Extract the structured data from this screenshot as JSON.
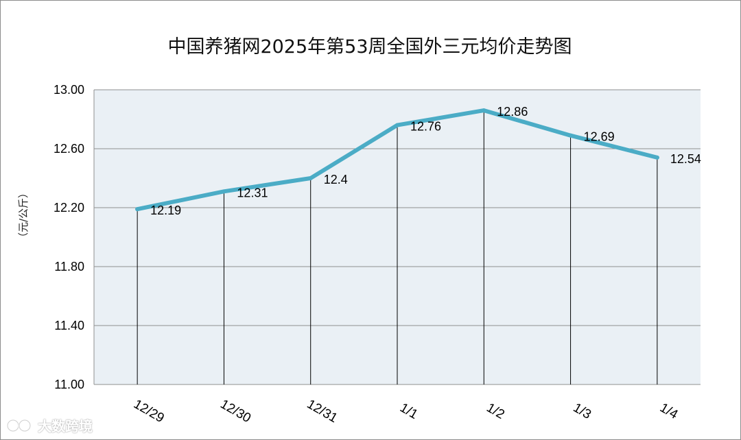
{
  "chart_data": {
    "type": "line",
    "title": "中国养猪网2025年第53周全国外三元均价走势图",
    "ylabel": "（元/公斤）",
    "categories": [
      "12/29",
      "12/30",
      "12/31",
      "1/1",
      "1/2",
      "1/3",
      "1/4"
    ],
    "values": [
      12.19,
      12.31,
      12.4,
      12.76,
      12.86,
      12.69,
      12.54
    ],
    "value_labels": [
      "12.19",
      "12.31",
      "12.4",
      "12.76",
      "12.86",
      "12.69",
      "12.54"
    ],
    "ylim": [
      11.0,
      13.0
    ],
    "yticks": [
      "11.00",
      "11.40",
      "11.80",
      "12.20",
      "12.60",
      "13.00"
    ],
    "grid": true,
    "drop_lines": true,
    "colors": {
      "line": "#4bacc6",
      "plot_background": "#eaf0f5",
      "gridline": "#8f8f8f",
      "drop_line": "#000000"
    }
  },
  "watermark": {
    "text": "大数跨境",
    "icon": "watermark-logo-icon"
  }
}
